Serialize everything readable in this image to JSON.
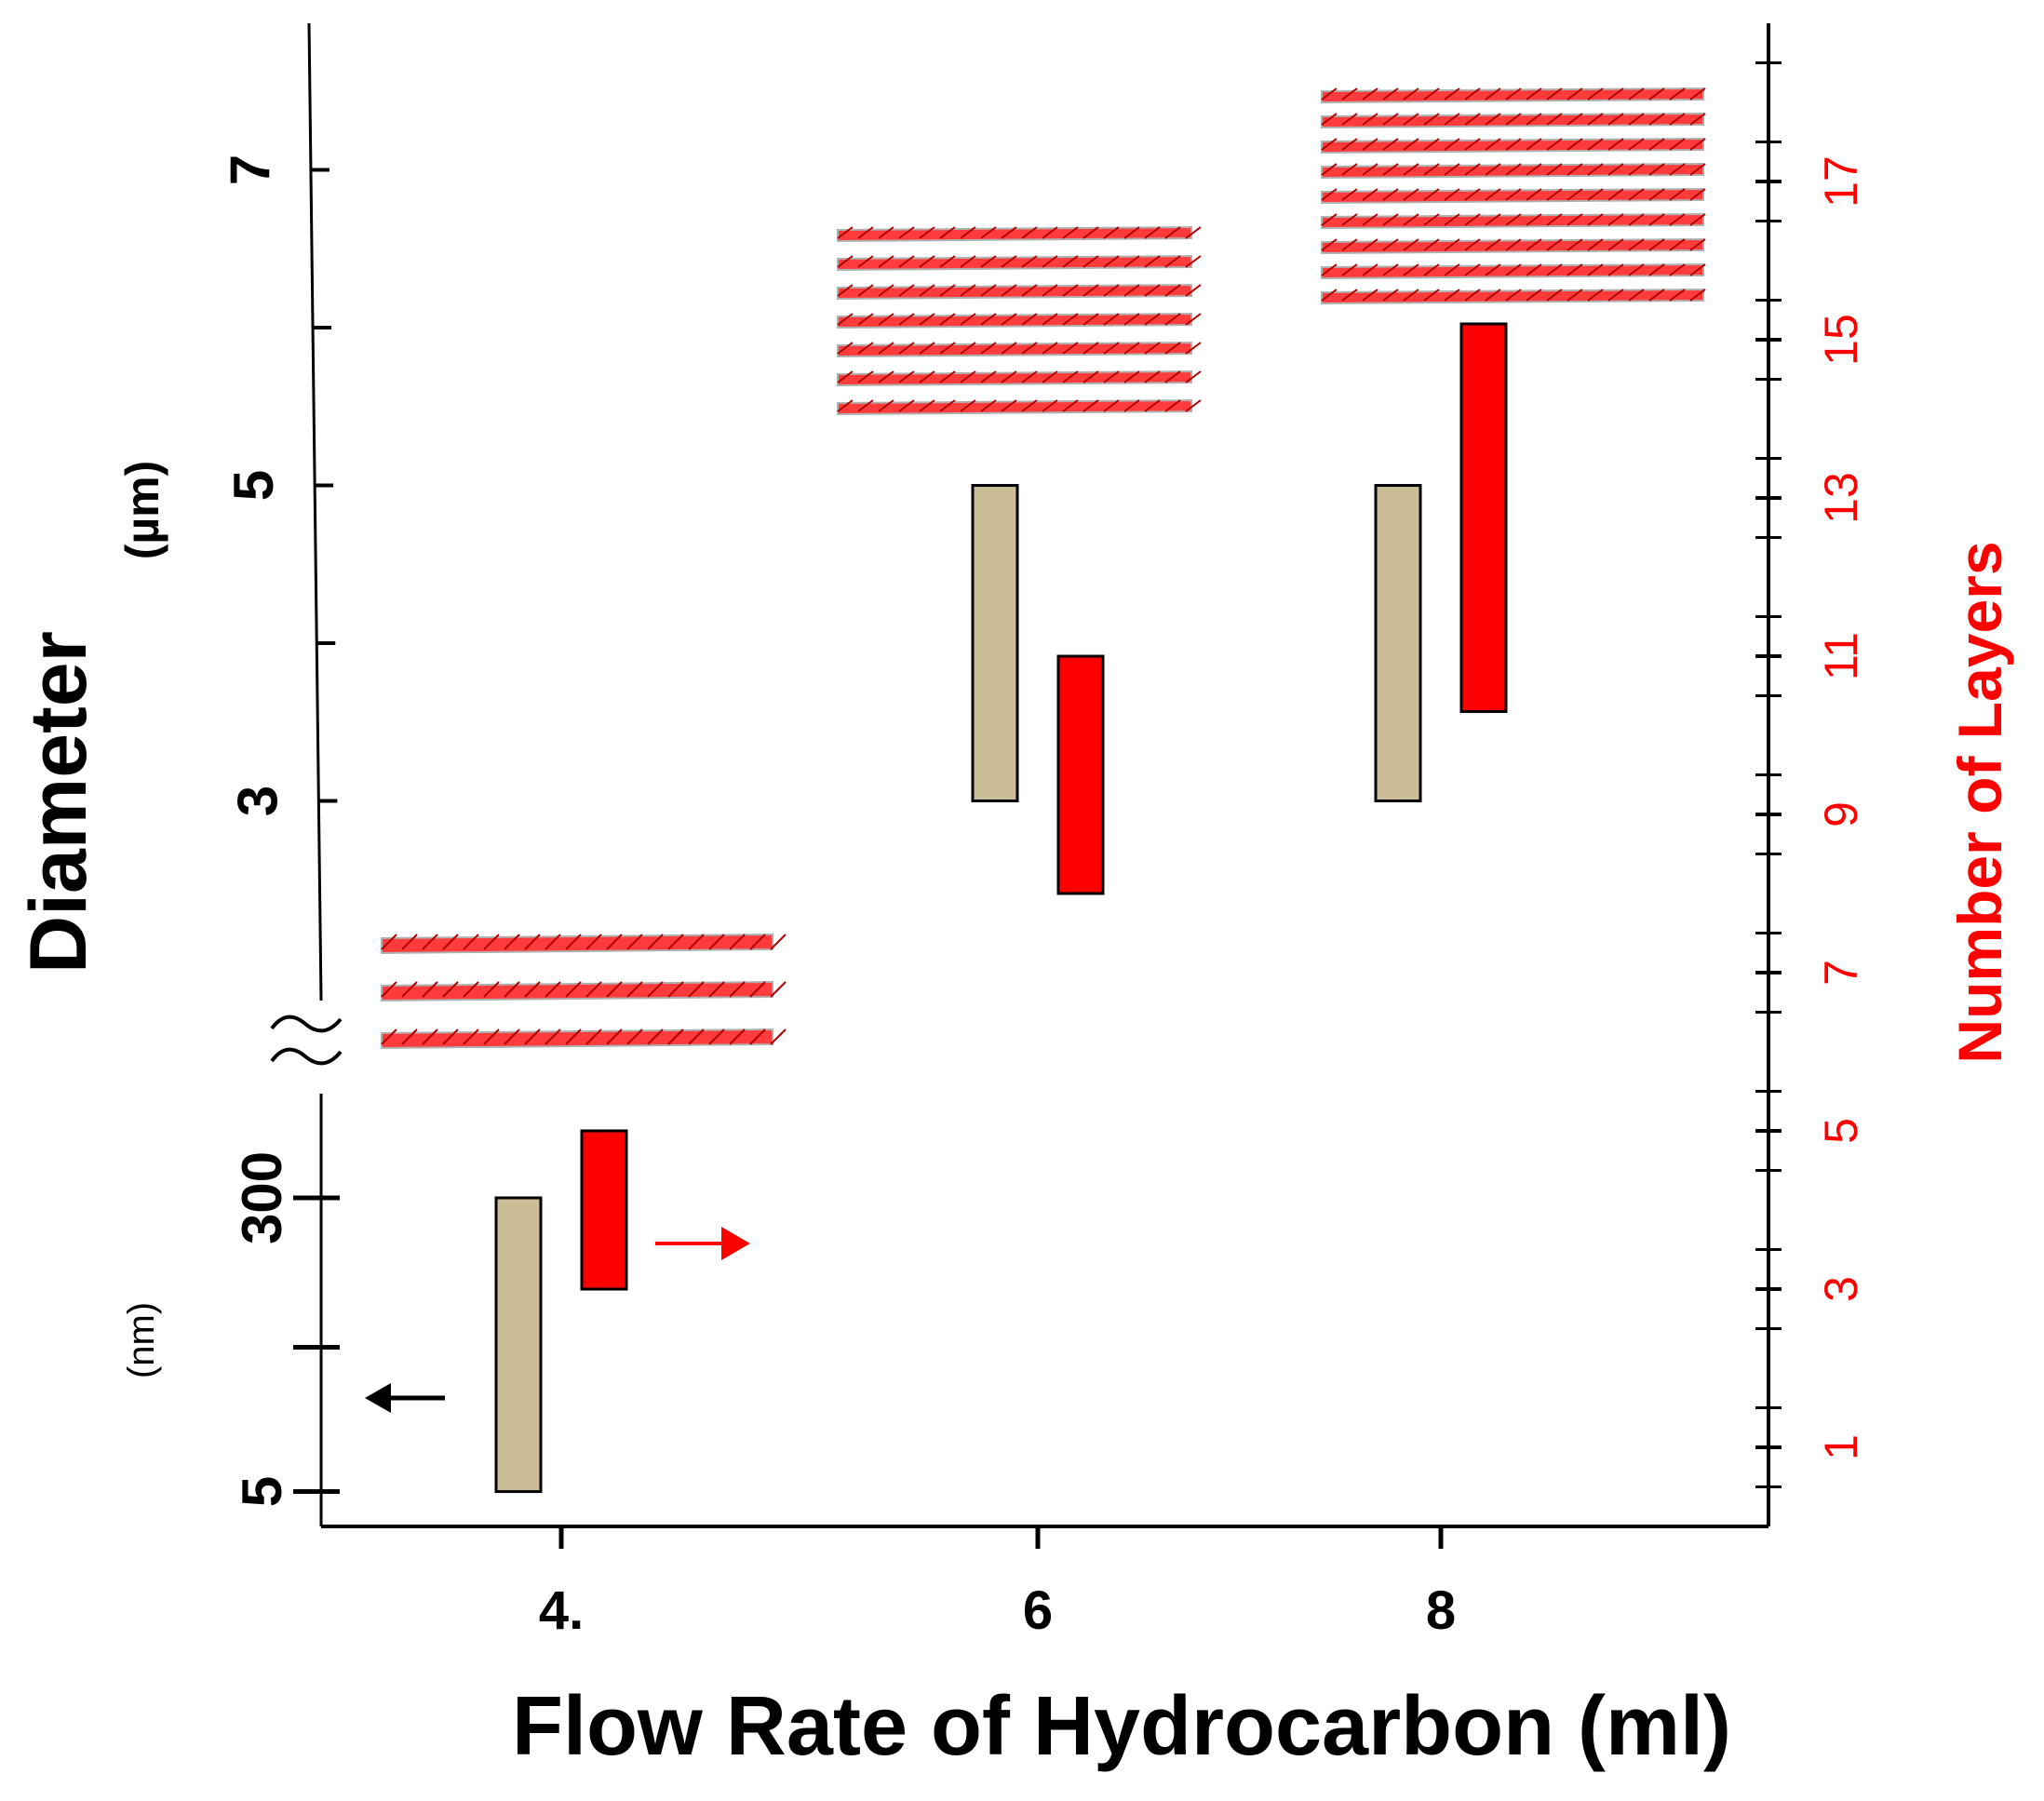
{
  "chart_data": {
    "type": "bar",
    "title": "",
    "xlabel": "Flow Rate of Hydrocarbon (ml)",
    "ylabel_left": "Diameter",
    "ylabel_left_unit_upper": "(µm)",
    "ylabel_left_unit_lower": "(nm)",
    "ylabel_right": "Number of Layers",
    "x_tick_labels": [
      "4.",
      "6",
      "8"
    ],
    "left_ticks_upper": [
      {
        "value": 3,
        "label": "3"
      },
      {
        "value": 4,
        "label": ""
      },
      {
        "value": 5,
        "label": "5"
      },
      {
        "value": 6,
        "label": ""
      },
      {
        "value": 7,
        "label": "7"
      }
    ],
    "left_ticks_lower": [
      {
        "value": 5,
        "label": "5"
      },
      {
        "value": 150,
        "label": ""
      },
      {
        "value": 300,
        "label": "300"
      }
    ],
    "right_ticks": [
      {
        "value": 1,
        "label": "1"
      },
      {
        "value": 3,
        "label": "3"
      },
      {
        "value": 5,
        "label": "5"
      },
      {
        "value": 7,
        "label": "7"
      },
      {
        "value": 9,
        "label": "9"
      },
      {
        "value": 11,
        "label": "11"
      },
      {
        "value": 13,
        "label": "13"
      },
      {
        "value": 15,
        "label": "15"
      },
      {
        "value": 17,
        "label": "17"
      }
    ],
    "ylim_upper_um": [
      2.0,
      7.9
    ],
    "ylim_lower_nm": [
      -30,
      400
    ],
    "ylim_right_layers": [
      0,
      19
    ],
    "series": [
      {
        "name": "Diameter",
        "color": "#cbbd97",
        "axis": "left",
        "ranges": [
          {
            "x": "4.",
            "scale": "nm",
            "min": 5,
            "max": 300
          },
          {
            "x": "6",
            "scale": "um",
            "min": 3.0,
            "max": 5.0
          },
          {
            "x": "8",
            "scale": "um",
            "min": 3.0,
            "max": 5.0
          }
        ]
      },
      {
        "name": "Number of Layers",
        "color": "#ff0000",
        "axis": "right",
        "ranges": [
          {
            "x": "4.",
            "min": 3,
            "max": 5
          },
          {
            "x": "6",
            "min": 8,
            "max": 11
          },
          {
            "x": "8",
            "min": 10.3,
            "max": 15.2
          }
        ]
      }
    ],
    "illustrations": [
      {
        "x": "4.",
        "layers": 3
      },
      {
        "x": "6",
        "layers": 7
      },
      {
        "x": "8",
        "layers": 9
      }
    ],
    "colors": {
      "axis": "#000000",
      "accent": "#ff0000",
      "diameter_fill": "#cbbd97",
      "layers_fill": "#ff0000"
    }
  }
}
